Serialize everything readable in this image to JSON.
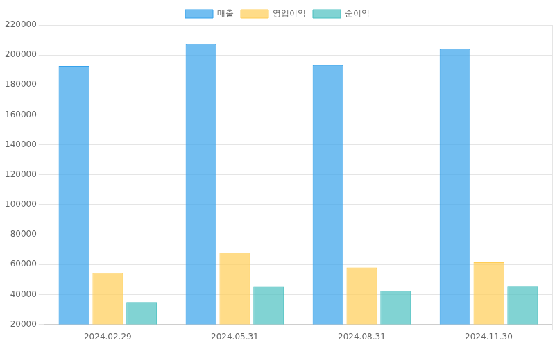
{
  "chart_data": {
    "type": "bar",
    "categories": [
      "2024.02.29",
      "2024.05.31",
      "2024.08.31",
      "2024.11.30"
    ],
    "series": [
      {
        "name": "매출",
        "color": "#36a2eb",
        "values": [
          192700,
          207300,
          193200,
          204000
        ]
      },
      {
        "name": "영업이익",
        "color": "#ffcd56",
        "values": [
          54500,
          68000,
          58000,
          61500
        ]
      },
      {
        "name": "순이익",
        "color": "#4bc0c0",
        "values": [
          35000,
          45500,
          42500,
          45700
        ]
      }
    ],
    "ylim": [
      20000,
      220000
    ],
    "yticks": [
      20000,
      40000,
      60000,
      80000,
      100000,
      120000,
      140000,
      160000,
      180000,
      200000,
      220000
    ],
    "grid": true,
    "legend": "top"
  }
}
